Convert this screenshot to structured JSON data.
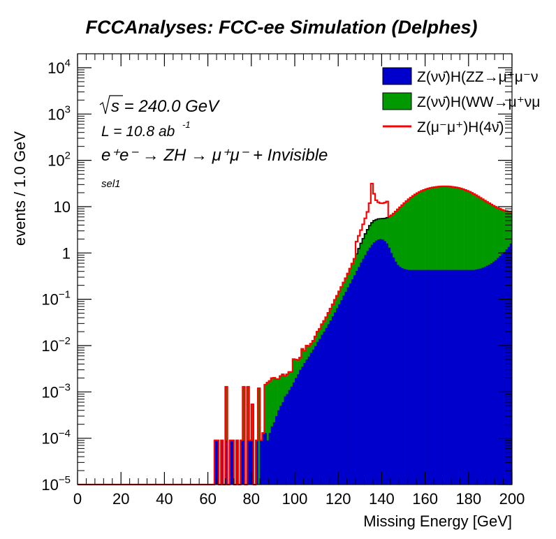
{
  "chart_data": {
    "type": "histogram-stacked-log",
    "title": "FCCAnalyses: FCC-ee Simulation (Delphes)",
    "xlabel": "Missing Energy [GeV]",
    "ylabel": "events / 1.0 GeV",
    "xlim": [
      0,
      200
    ],
    "ylim": [
      1e-05,
      20000
    ],
    "log_y": true,
    "bin_width": 1.0,
    "x_ticks": [
      "0",
      "20",
      "40",
      "60",
      "80",
      "100",
      "120",
      "140",
      "160",
      "180",
      "200"
    ],
    "y_ticks": [
      {
        "value": 1e-05,
        "base": "10",
        "exp": "−5"
      },
      {
        "value": 0.0001,
        "base": "10",
        "exp": "−4"
      },
      {
        "value": 0.001,
        "base": "10",
        "exp": "−3"
      },
      {
        "value": 0.01,
        "base": "10",
        "exp": "−2"
      },
      {
        "value": 0.1,
        "base": "10",
        "exp": "−1"
      },
      {
        "value": 1,
        "base": "1",
        "exp": ""
      },
      {
        "value": 10,
        "base": "10",
        "exp": ""
      },
      {
        "value": 100,
        "base": "10",
        "exp": "2"
      },
      {
        "value": 1000,
        "base": "10",
        "exp": "3"
      },
      {
        "value": 10000,
        "base": "10",
        "exp": "4"
      }
    ],
    "annotations": {
      "sqrt_s": "s = 240.0 GeV",
      "lumi": "L = 10.8 ab",
      "lumi_exp": "-1",
      "process": "e⁺e⁻ → ZH → μ⁺μ⁻ + Invisible",
      "selection": "sel1"
    },
    "legend": {
      "position": "top-right",
      "entries": [
        {
          "label": "Z(νν̄)H(ZZ→μ⁺μ⁻ν",
          "color": "#0000cc",
          "style": "fill"
        },
        {
          "label": "Z(νν̄)H(WW→μ⁺νμ",
          "color": "#009900",
          "style": "fill"
        },
        {
          "label": "Z(μ⁻μ⁺)H(4ν̄)",
          "color": "#ff0000",
          "style": "line"
        }
      ]
    },
    "series": [
      {
        "name": "Z(νν̄)H(ZZ→μ⁺μ⁻ν",
        "color": "#0000cc",
        "values": [
          [
            63,
            9e-05
          ],
          [
            64,
            9e-05
          ],
          [
            66,
            9e-05
          ],
          [
            68,
            9e-05
          ],
          [
            70,
            9e-05
          ],
          [
            71,
            9e-05
          ],
          [
            73,
            9e-05
          ],
          [
            75,
            9e-05
          ],
          [
            76,
            9e-05
          ],
          [
            78,
            9e-05
          ],
          [
            79,
            9e-05
          ],
          [
            80,
            9e-05
          ],
          [
            82,
            9e-05
          ],
          [
            84,
            9e-05
          ],
          [
            85,
            0.00013
          ],
          [
            86,
            0.00013
          ],
          [
            87,
            9e-05
          ],
          [
            88,
            0.00013
          ],
          [
            89,
            0.00018
          ],
          [
            90,
            0.00022
          ],
          [
            91,
            0.0003
          ],
          [
            92,
            0.0004
          ],
          [
            93,
            0.0005
          ],
          [
            94,
            0.0006
          ],
          [
            95,
            0.0008
          ],
          [
            96,
            0.0009
          ],
          [
            97,
            0.0011
          ],
          [
            98,
            0.0013
          ],
          [
            99,
            0.0016
          ],
          [
            100,
            0.002
          ],
          [
            101,
            0.0024
          ],
          [
            102,
            0.003
          ],
          [
            103,
            0.0035
          ],
          [
            104,
            0.0042
          ],
          [
            105,
            0.005
          ],
          [
            106,
            0.0058
          ],
          [
            107,
            0.007
          ],
          [
            108,
            0.0082
          ],
          [
            109,
            0.0098
          ],
          [
            110,
            0.012
          ],
          [
            111,
            0.014
          ],
          [
            112,
            0.017
          ],
          [
            113,
            0.02
          ],
          [
            114,
            0.024
          ],
          [
            115,
            0.029
          ],
          [
            116,
            0.035
          ],
          [
            117,
            0.043
          ],
          [
            118,
            0.052
          ],
          [
            119,
            0.064
          ],
          [
            120,
            0.078
          ],
          [
            121,
            0.095
          ],
          [
            122,
            0.12
          ],
          [
            123,
            0.145
          ],
          [
            124,
            0.18
          ],
          [
            125,
            0.22
          ],
          [
            126,
            0.27
          ],
          [
            127,
            0.33
          ],
          [
            128,
            0.41
          ],
          [
            129,
            0.5
          ],
          [
            130,
            0.62
          ],
          [
            131,
            0.75
          ],
          [
            132,
            0.9
          ],
          [
            133,
            1.1
          ],
          [
            134,
            1.3
          ],
          [
            135,
            1.5
          ],
          [
            136,
            1.7
          ],
          [
            137,
            1.85
          ],
          [
            138,
            1.95
          ],
          [
            139,
            2.0
          ],
          [
            140,
            1.95
          ],
          [
            141,
            1.8
          ],
          [
            142,
            1.6
          ],
          [
            143,
            1.3
          ],
          [
            144,
            1.0
          ],
          [
            145,
            0.8
          ],
          [
            146,
            0.65
          ],
          [
            147,
            0.55
          ],
          [
            148,
            0.5
          ],
          [
            149,
            0.47
          ],
          [
            150,
            0.45
          ],
          [
            151,
            0.44
          ],
          [
            152,
            0.43
          ],
          [
            153,
            0.43
          ],
          [
            154,
            0.43
          ],
          [
            155,
            0.43
          ],
          [
            156,
            0.43
          ],
          [
            157,
            0.43
          ],
          [
            158,
            0.43
          ],
          [
            159,
            0.43
          ],
          [
            160,
            0.43
          ],
          [
            161,
            0.43
          ],
          [
            162,
            0.43
          ],
          [
            163,
            0.43
          ],
          [
            164,
            0.43
          ],
          [
            165,
            0.43
          ],
          [
            166,
            0.43
          ],
          [
            167,
            0.43
          ],
          [
            168,
            0.43
          ],
          [
            169,
            0.43
          ],
          [
            170,
            0.43
          ],
          [
            171,
            0.43
          ],
          [
            172,
            0.43
          ],
          [
            173,
            0.43
          ],
          [
            174,
            0.43
          ],
          [
            175,
            0.43
          ],
          [
            176,
            0.43
          ],
          [
            177,
            0.43
          ],
          [
            178,
            0.43
          ],
          [
            179,
            0.43
          ],
          [
            180,
            0.43
          ],
          [
            181,
            0.43
          ],
          [
            182,
            0.43
          ],
          [
            183,
            0.44
          ],
          [
            184,
            0.45
          ],
          [
            185,
            0.46
          ],
          [
            186,
            0.48
          ],
          [
            187,
            0.5
          ],
          [
            188,
            0.53
          ],
          [
            189,
            0.56
          ],
          [
            190,
            0.6
          ],
          [
            191,
            0.65
          ],
          [
            192,
            0.7
          ],
          [
            193,
            0.78
          ],
          [
            194,
            0.86
          ],
          [
            195,
            0.95
          ],
          [
            196,
            1.05
          ],
          [
            197,
            1.2
          ],
          [
            198,
            1.35
          ],
          [
            199,
            1.6
          ]
        ]
      },
      {
        "name": "Z(νν̄)H(WW→μ⁺νμ",
        "color": "#009900",
        "values": [
          [
            68,
            0.0012
          ],
          [
            76,
            0.0012
          ],
          [
            78,
            0.0012
          ],
          [
            80,
            0.00045
          ],
          [
            83,
            0.0012
          ],
          [
            86,
            0.0013
          ],
          [
            87,
            0.0015
          ],
          [
            88,
            0.0016
          ],
          [
            89,
            0.0018
          ],
          [
            90,
            0.0018
          ],
          [
            91,
            0.0016
          ],
          [
            92,
            0.0015
          ],
          [
            93,
            0.0017
          ],
          [
            94,
            0.0018
          ],
          [
            95,
            0.0014
          ],
          [
            96,
            0.0015
          ],
          [
            97,
            0.0016
          ],
          [
            98,
            0.0014
          ],
          [
            99,
            0.0035
          ],
          [
            100,
            0.003
          ],
          [
            101,
            0.0025
          ],
          [
            102,
            0.0025
          ],
          [
            103,
            0.005
          ],
          [
            104,
            0.0035
          ],
          [
            105,
            0.005
          ],
          [
            106,
            0.004
          ],
          [
            107,
            0.004
          ],
          [
            108,
            0.0045
          ],
          [
            109,
            0.006
          ],
          [
            110,
            0.008
          ],
          [
            111,
            0.009
          ],
          [
            112,
            0.012
          ],
          [
            113,
            0.014
          ],
          [
            114,
            0.017
          ],
          [
            115,
            0.022
          ],
          [
            116,
            0.028
          ],
          [
            117,
            0.035
          ],
          [
            118,
            0.045
          ],
          [
            119,
            0.055
          ],
          [
            120,
            0.07
          ],
          [
            121,
            0.09
          ],
          [
            122,
            0.11
          ],
          [
            123,
            0.14
          ],
          [
            124,
            0.18
          ],
          [
            125,
            0.24
          ],
          [
            126,
            0.32
          ],
          [
            127,
            0.42
          ],
          [
            128,
            0.55
          ],
          [
            129,
            0.75
          ],
          [
            130,
            1.0
          ],
          [
            131,
            1.3
          ],
          [
            132,
            1.7
          ],
          [
            133,
            2.1
          ],
          [
            134,
            2.6
          ],
          [
            135,
            3.0
          ],
          [
            136,
            3.3
          ],
          [
            137,
            3.4
          ],
          [
            138,
            3.5
          ],
          [
            139,
            3.5
          ],
          [
            140,
            3.6
          ],
          [
            141,
            3.8
          ],
          [
            142,
            4.2
          ],
          [
            143,
            4.8
          ],
          [
            144,
            5.5
          ],
          [
            145,
            6.3
          ],
          [
            146,
            7.2
          ],
          [
            147,
            8.2
          ],
          [
            148,
            9.2
          ],
          [
            149,
            10.3
          ],
          [
            150,
            11.5
          ],
          [
            151,
            12.7
          ],
          [
            152,
            14.0
          ],
          [
            153,
            15.3
          ],
          [
            154,
            16.6
          ],
          [
            155,
            17.9
          ],
          [
            156,
            19.2
          ],
          [
            157,
            20.4
          ],
          [
            158,
            21.5
          ],
          [
            159,
            22.5
          ],
          [
            160,
            23.4
          ],
          [
            161,
            24.2
          ],
          [
            162,
            24.9
          ],
          [
            163,
            25.5
          ],
          [
            164,
            26.0
          ],
          [
            165,
            26.4
          ],
          [
            166,
            26.7
          ],
          [
            167,
            26.9
          ],
          [
            168,
            27.0
          ],
          [
            169,
            27.0
          ],
          [
            170,
            26.9
          ],
          [
            171,
            26.7
          ],
          [
            172,
            26.4
          ],
          [
            173,
            26.0
          ],
          [
            174,
            25.5
          ],
          [
            175,
            24.9
          ],
          [
            176,
            24.2
          ],
          [
            177,
            23.4
          ],
          [
            178,
            22.5
          ],
          [
            179,
            21.5
          ],
          [
            180,
            20.5
          ],
          [
            181,
            19.4
          ],
          [
            182,
            18.3
          ],
          [
            183,
            17.2
          ],
          [
            184,
            16.1
          ],
          [
            185,
            15.0
          ],
          [
            186,
            14.0
          ],
          [
            187,
            13.0
          ],
          [
            188,
            12.1
          ],
          [
            189,
            11.3
          ],
          [
            190,
            10.5
          ],
          [
            191,
            9.8
          ],
          [
            192,
            9.2
          ],
          [
            193,
            8.6
          ],
          [
            194,
            8.1
          ],
          [
            195,
            7.6
          ],
          [
            196,
            7.2
          ],
          [
            197,
            6.8
          ],
          [
            198,
            6.4
          ],
          [
            199,
            6.1
          ]
        ]
      },
      {
        "name": "Z(μ⁻μ⁺)H(4ν̄)",
        "color": "#ff0000",
        "values": [
          [
            128,
            0.8
          ],
          [
            129,
            1.1
          ],
          [
            130,
            1.5
          ],
          [
            131,
            2.1
          ],
          [
            132,
            3.0
          ],
          [
            133,
            4.5
          ],
          [
            134,
            8.0
          ],
          [
            135,
            27.0
          ],
          [
            136,
            14.0
          ],
          [
            137,
            8.5
          ],
          [
            138,
            7.0
          ],
          [
            139,
            6.4
          ],
          [
            140,
            6.3
          ],
          [
            141,
            6.6
          ],
          [
            142,
            7.1
          ]
        ]
      }
    ]
  }
}
